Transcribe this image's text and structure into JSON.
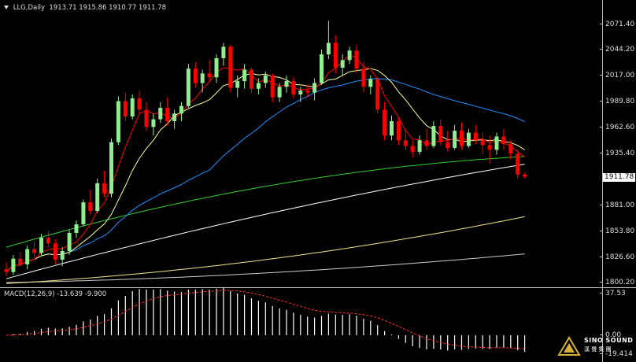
{
  "chart_header": {
    "symbol": "LLG,Daily",
    "ohlc": "1913.71 1915.86 1910.77 1911.78"
  },
  "macd_header": {
    "label": "MACD(12,26,9) -13.639 -9.900"
  },
  "price_axis": {
    "ticks": [
      "2071.40",
      "2044.20",
      "2017.00",
      "1989.80",
      "1962.60",
      "1935.40",
      "1908.20",
      "1881.00",
      "1853.80",
      "1826.60",
      "1800.20"
    ],
    "current_price": "1911.78"
  },
  "macd_axis": {
    "ticks": [
      "37.53",
      "0.00",
      "-19.414"
    ]
  },
  "logo": {
    "name": "SINO SOUND",
    "subtitle": "漢 聲 集 團"
  },
  "colors": {
    "bull": "#90ee90",
    "bear": "#ff0000",
    "ma5": "#ff0000",
    "ma10": "#ffff99",
    "ma20": "#1e90ff",
    "ma60": "#32cd32",
    "ma120": "#ffffff",
    "ma250": "#f0e68c",
    "ma_long": "#cccccc",
    "macd_hist": "#ffffff",
    "macd_signal": "#ff3030"
  },
  "chart_data": {
    "type": "candlestick",
    "ylim": [
      1800.2,
      2071.4
    ],
    "candles": [
      [
        1815,
        1822,
        1808,
        1812
      ],
      [
        1812,
        1830,
        1809,
        1826
      ],
      [
        1826,
        1833,
        1818,
        1820
      ],
      [
        1820,
        1840,
        1815,
        1836
      ],
      [
        1836,
        1844,
        1826,
        1832
      ],
      [
        1832,
        1852,
        1830,
        1848
      ],
      [
        1848,
        1855,
        1838,
        1842
      ],
      [
        1842,
        1846,
        1820,
        1825
      ],
      [
        1825,
        1838,
        1818,
        1834
      ],
      [
        1834,
        1856,
        1830,
        1853
      ],
      [
        1853,
        1866,
        1848,
        1862
      ],
      [
        1862,
        1888,
        1860,
        1885
      ],
      [
        1885,
        1898,
        1872,
        1876
      ],
      [
        1876,
        1910,
        1874,
        1905
      ],
      [
        1905,
        1918,
        1890,
        1894
      ],
      [
        1894,
        1952,
        1890,
        1948
      ],
      [
        1948,
        1996,
        1945,
        1991
      ],
      [
        1991,
        2000,
        1970,
        1975
      ],
      [
        1975,
        1998,
        1972,
        1994
      ],
      [
        1994,
        2002,
        1978,
        1982
      ],
      [
        1982,
        1990,
        1960,
        1964
      ],
      [
        1964,
        1978,
        1955,
        1972
      ],
      [
        1972,
        1990,
        1968,
        1984
      ],
      [
        1984,
        1995,
        1965,
        1970
      ],
      [
        1970,
        1982,
        1962,
        1978
      ],
      [
        1978,
        1990,
        1970,
        1986
      ],
      [
        1986,
        2030,
        1984,
        2025
      ],
      [
        2025,
        2032,
        2005,
        2010
      ],
      [
        2010,
        2024,
        2000,
        2020
      ],
      [
        2020,
        2034,
        2012,
        2016
      ],
      [
        2016,
        2040,
        2010,
        2036
      ],
      [
        2036,
        2052,
        2028,
        2048
      ],
      [
        2048,
        2050,
        2000,
        2005
      ],
      [
        2005,
        2018,
        1995,
        2012
      ],
      [
        2012,
        2030,
        2004,
        2024
      ],
      [
        2024,
        2026,
        2000,
        2004
      ],
      [
        2004,
        2015,
        1998,
        2010
      ],
      [
        2010,
        2022,
        2005,
        2018
      ],
      [
        2018,
        2020,
        1990,
        1995
      ],
      [
        1995,
        2010,
        1990,
        2006
      ],
      [
        2006,
        2018,
        2000,
        2012
      ],
      [
        2012,
        2016,
        1994,
        1998
      ],
      [
        1998,
        2006,
        1990,
        2002
      ],
      [
        2002,
        2008,
        1995,
        2000
      ],
      [
        2000,
        2015,
        1992,
        2010
      ],
      [
        2010,
        2045,
        2008,
        2040
      ],
      [
        2040,
        2075,
        2035,
        2052
      ],
      [
        2052,
        2060,
        2020,
        2026
      ],
      [
        2026,
        2040,
        2018,
        2034
      ],
      [
        2034,
        2048,
        2030,
        2044
      ],
      [
        2044,
        2050,
        2020,
        2025
      ],
      [
        2025,
        2032,
        2000,
        2006
      ],
      [
        2006,
        2018,
        1998,
        2014
      ],
      [
        2014,
        2016,
        1978,
        1982
      ],
      [
        1982,
        1990,
        1950,
        1955
      ],
      [
        1955,
        1976,
        1950,
        1970
      ],
      [
        1970,
        1974,
        1945,
        1950
      ],
      [
        1950,
        1962,
        1940,
        1944
      ],
      [
        1944,
        1950,
        1932,
        1938
      ],
      [
        1938,
        1955,
        1935,
        1950
      ],
      [
        1950,
        1962,
        1940,
        1944
      ],
      [
        1944,
        1970,
        1942,
        1965
      ],
      [
        1965,
        1972,
        1944,
        1948
      ],
      [
        1948,
        1960,
        1938,
        1942
      ],
      [
        1942,
        1966,
        1940,
        1960
      ],
      [
        1960,
        1968,
        1940,
        1944
      ],
      [
        1944,
        1962,
        1942,
        1958
      ],
      [
        1958,
        1966,
        1946,
        1950
      ],
      [
        1950,
        1958,
        1935,
        1945
      ],
      [
        1945,
        1955,
        1926,
        1940
      ],
      [
        1940,
        1958,
        1935,
        1954
      ],
      [
        1954,
        1962,
        1940,
        1946
      ],
      [
        1946,
        1950,
        1930,
        1936
      ],
      [
        1936,
        1940,
        1910,
        1914
      ],
      [
        1914,
        1916,
        1910,
        1912
      ]
    ]
  }
}
